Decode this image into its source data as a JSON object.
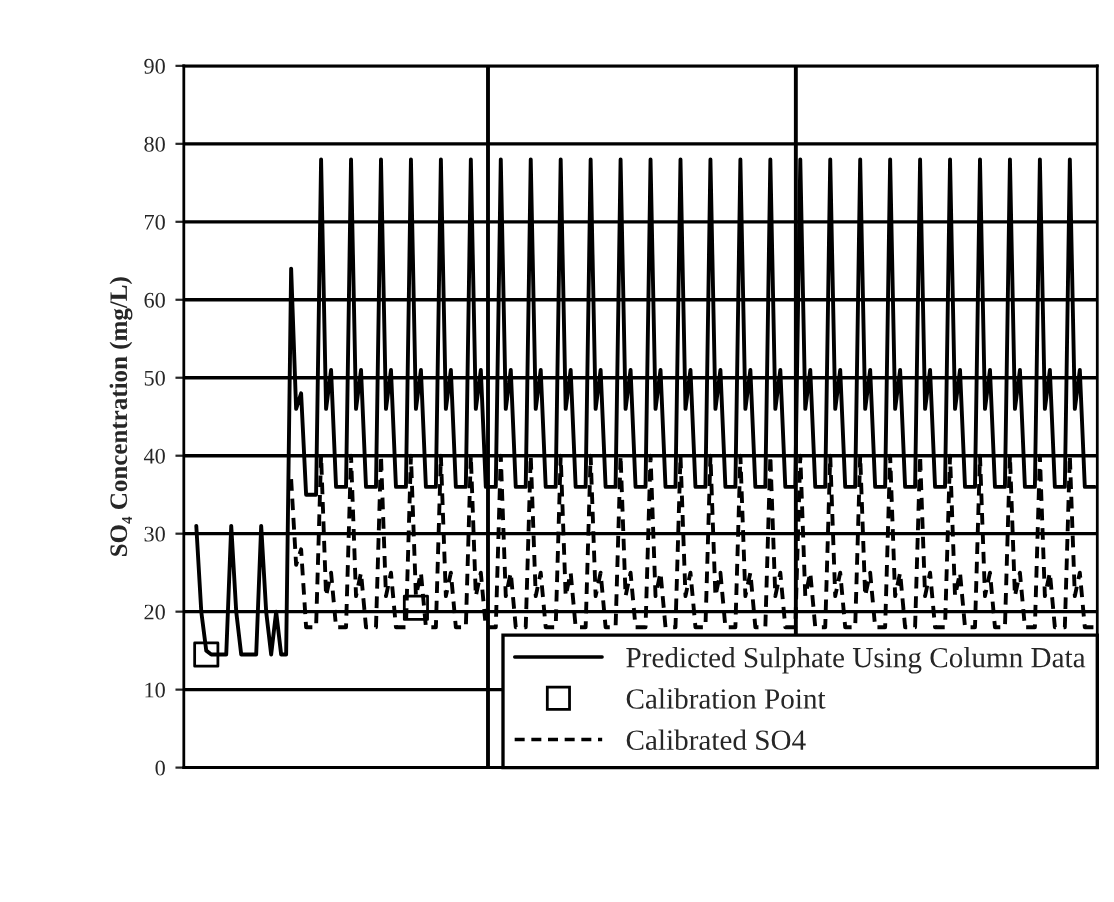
{
  "chart_data": {
    "type": "line",
    "ylabel": "SO₄ Concentration (mg/L)",
    "categories": [
      null,
      null,
      null,
      null,
      null,
      null,
      null,
      null,
      null,
      null,
      null,
      null,
      null,
      null,
      null,
      null,
      null,
      null,
      null,
      null,
      null,
      null,
      null,
      null,
      null,
      null,
      null,
      null,
      null,
      null,
      null,
      null,
      null,
      null,
      null,
      null,
      null,
      null,
      null,
      null,
      null,
      null,
      null,
      null,
      null,
      null,
      null,
      null,
      null,
      null,
      null,
      null,
      null,
      null,
      null,
      null,
      null,
      null,
      null,
      null,
      null,
      null,
      null,
      null,
      null,
      null,
      null,
      null,
      null,
      null,
      null,
      null,
      null,
      null,
      null,
      null,
      null,
      null,
      null,
      null,
      null,
      null,
      null,
      null,
      null,
      null,
      null,
      null,
      null,
      null,
      null,
      null,
      null,
      null,
      null,
      null,
      null,
      null,
      null,
      null,
      null,
      null,
      null,
      null,
      null,
      null,
      null,
      null,
      null,
      null,
      null,
      null,
      null,
      null,
      null,
      null,
      null,
      null,
      null,
      null,
      null,
      null,
      null,
      null,
      null,
      null,
      null,
      null,
      null,
      null,
      null,
      null,
      null,
      null,
      null,
      null,
      null,
      null,
      null,
      null,
      null,
      null,
      null,
      null,
      null,
      null,
      null,
      null,
      null,
      null,
      null,
      null,
      null,
      null,
      null,
      null,
      null,
      null,
      null,
      null,
      null,
      null,
      null,
      null,
      null,
      null,
      null,
      null,
      null,
      null,
      null,
      null,
      null,
      null,
      null,
      null,
      null,
      null,
      null,
      null,
      null,
      null,
      null
    ],
    "series": [
      {
        "name": "Predicted Sulphate Using Column Data",
        "color": "#000000",
        "line_style": "solid",
        "values": [
          null,
          null,
          31,
          20,
          15,
          14.5,
          14.5,
          14.5,
          14.5,
          31,
          20,
          14.5,
          14.5,
          14.5,
          14.5,
          31,
          20,
          14.5,
          20,
          14.5,
          14.5,
          64,
          46,
          48,
          35,
          35,
          35,
          78,
          46,
          51,
          36,
          36,
          36,
          78,
          46,
          51,
          36,
          36,
          36,
          78,
          46,
          51,
          36,
          36,
          36,
          78,
          46,
          51,
          36,
          36,
          36,
          78,
          46,
          51,
          36,
          36,
          36,
          78,
          46,
          51,
          36,
          36,
          36,
          78,
          46,
          51,
          36,
          36,
          36,
          78,
          46,
          51,
          36,
          36,
          36,
          78,
          46,
          51,
          36,
          36,
          36,
          78,
          46,
          51,
          36,
          36,
          36,
          78,
          46,
          51,
          36,
          36,
          36,
          78,
          46,
          51,
          36,
          36,
          36,
          78,
          46,
          51,
          36,
          36,
          36,
          78,
          46,
          51,
          36,
          36,
          36,
          78,
          46,
          51,
          36,
          36,
          36,
          78,
          46,
          51,
          36,
          36,
          36,
          78,
          46,
          51,
          36,
          36,
          36,
          78,
          46,
          51,
          36,
          36,
          36,
          78,
          46,
          51,
          36,
          36,
          36,
          78,
          46,
          51,
          36,
          36,
          36,
          78,
          46,
          51,
          36,
          36,
          36,
          78,
          46,
          51,
          36,
          36,
          36,
          78,
          46,
          51,
          36,
          36,
          36,
          78,
          46,
          51,
          36,
          36,
          36,
          78,
          46,
          51,
          36,
          36,
          36,
          78,
          46,
          51,
          36,
          36,
          36
        ]
      },
      {
        "name": "Calibration Point",
        "type": "scatter",
        "color": "#000000",
        "marker": "square",
        "values": [
          null,
          null,
          null,
          null,
          14.5,
          null,
          null,
          null,
          null,
          null,
          null,
          null,
          null,
          null,
          null,
          null,
          null,
          null,
          null,
          null,
          null,
          null,
          null,
          null,
          null,
          null,
          null,
          null,
          null,
          null,
          null,
          null,
          null,
          null,
          null,
          null,
          null,
          null,
          null,
          null,
          null,
          null,
          null,
          null,
          null,
          null,
          20.5,
          null,
          null,
          null,
          null,
          null,
          null,
          null,
          null,
          null,
          null,
          null,
          null,
          null,
          null,
          null,
          null,
          null,
          null,
          null,
          null,
          null,
          null,
          null,
          null,
          null,
          null,
          null,
          null,
          null,
          null,
          null,
          null,
          null,
          null,
          null,
          null,
          null,
          null,
          null,
          null,
          null,
          null,
          null,
          null,
          null,
          null,
          null,
          null,
          null,
          null,
          null,
          null,
          null,
          null,
          null,
          null,
          null,
          null,
          null,
          null,
          null,
          null,
          null,
          null,
          null,
          null,
          null,
          null,
          null,
          null,
          null,
          null,
          null,
          null,
          null,
          null,
          null,
          null,
          null,
          null,
          null,
          null,
          null,
          null,
          null,
          null,
          null,
          null,
          null,
          null,
          null,
          null,
          null,
          null,
          null,
          null,
          null,
          null,
          null,
          null,
          null,
          null,
          null,
          null,
          null,
          null,
          null,
          null,
          null,
          null,
          null,
          null,
          null,
          null,
          null,
          null,
          null,
          null,
          null,
          null,
          null,
          null,
          null,
          null,
          null,
          null,
          null,
          null,
          null,
          null,
          null,
          null,
          null,
          null,
          null,
          null
        ]
      },
      {
        "name": "Calibrated SO4",
        "color": "#000000",
        "line_style": "dashed",
        "values": [
          null,
          null,
          null,
          null,
          null,
          null,
          null,
          null,
          null,
          null,
          null,
          null,
          null,
          null,
          null,
          null,
          null,
          null,
          null,
          null,
          null,
          37,
          26,
          28,
          18,
          18,
          18,
          40,
          22,
          25,
          18,
          18,
          18,
          40,
          22,
          25,
          18,
          18,
          18,
          40,
          22,
          25,
          18,
          18,
          18,
          40,
          22,
          25,
          18,
          18,
          18,
          40,
          22,
          25,
          18,
          18,
          18,
          40,
          22,
          25,
          18,
          18,
          18,
          40,
          22,
          25,
          18,
          18,
          18,
          40,
          22,
          25,
          18,
          18,
          18,
          40,
          22,
          25,
          18,
          18,
          18,
          40,
          22,
          25,
          18,
          18,
          18,
          40,
          22,
          25,
          18,
          18,
          18,
          40,
          22,
          25,
          18,
          18,
          18,
          40,
          22,
          25,
          18,
          18,
          18,
          40,
          22,
          25,
          18,
          18,
          18,
          40,
          22,
          25,
          18,
          18,
          18,
          40,
          22,
          25,
          18,
          18,
          18,
          40,
          22,
          25,
          18,
          18,
          18,
          40,
          22,
          25,
          18,
          18,
          18,
          40,
          22,
          25,
          18,
          18,
          18,
          40,
          22,
          25,
          18,
          18,
          18,
          40,
          22,
          25,
          18,
          18,
          18,
          40,
          22,
          25,
          18,
          18,
          18,
          40,
          22,
          25,
          18,
          18,
          18,
          40,
          22,
          25,
          18,
          18,
          18,
          40,
          22,
          25,
          18,
          18,
          18,
          40,
          22,
          25,
          18,
          18,
          18
        ]
      }
    ],
    "ylim": [
      0,
      90
    ],
    "yticks": [
      0,
      10,
      20,
      30,
      40,
      50,
      60,
      70,
      80,
      90
    ],
    "grid": "y",
    "legend": "bottom right",
    "tick_labels": "y"
  }
}
